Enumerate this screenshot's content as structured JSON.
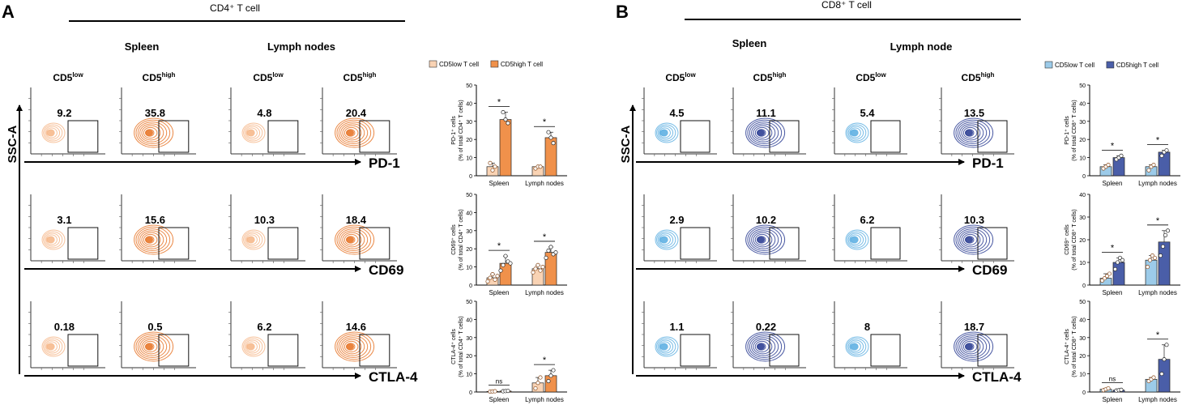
{
  "panels": [
    {
      "letter": "A",
      "title": "CD4⁺ T cell",
      "tissues": [
        "Spleen",
        "Lymph nodes"
      ],
      "subsets": [
        "CD5low",
        "CD5high",
        "CD5low",
        "CD5high"
      ],
      "y_axis_label": "SSC-A",
      "rows": [
        {
          "marker": "PD-1",
          "values": [
            "9.2",
            "35.8",
            "4.8",
            "20.4"
          ]
        },
        {
          "marker": "CD69",
          "values": [
            "3.1",
            "15.6",
            "10.3",
            "18.4"
          ]
        },
        {
          "marker": "CTLA-4",
          "values": [
            "0.18",
            "0.5",
            "6.2",
            "14.6"
          ]
        }
      ]
    },
    {
      "letter": "B",
      "title": "CD8⁺ T cell",
      "tissues": [
        "Spleen",
        "Lymph node"
      ],
      "subsets": [
        "CD5low",
        "CD5high",
        "CD5low",
        "CD5high"
      ],
      "y_axis_label": "SSC-A",
      "rows": [
        {
          "marker": "PD-1",
          "values": [
            "4.5",
            "11.1",
            "5.4",
            "13.5"
          ]
        },
        {
          "marker": "CD69",
          "values": [
            "2.9",
            "10.2",
            "6.2",
            "10.3"
          ]
        },
        {
          "marker": "CTLA-4",
          "values": [
            "1.1",
            "0.22",
            "8",
            "18.7"
          ]
        }
      ]
    }
  ],
  "colors": {
    "cd4_low": "#f9d3b4",
    "cd4_high": "#f0914b",
    "cd8_low": "#9ccbe9",
    "cd8_high": "#4a5ea8",
    "cd4_flow_low": "#f6b98c",
    "cd4_flow_high": "#e8772a",
    "cd8_flow_low": "#5fb0e2",
    "cd8_flow_high": "#2e3f94"
  },
  "chart_data": [
    {
      "type": "bar",
      "panel": "A",
      "legend": [
        "CD5low T cell",
        "CD5high T cell"
      ],
      "categories": [
        "Spleen",
        "Lymph nodes"
      ],
      "ylabel": "PD-1⁺ cells (% of total CD4⁺ T cells)",
      "ylim": [
        0,
        50
      ],
      "yticks": [
        0,
        10,
        20,
        30,
        40,
        50
      ],
      "series": [
        {
          "name": "CD5low T cell",
          "values": [
            5,
            5
          ],
          "points": [
            [
              7,
              3,
              5
            ],
            [
              4,
              5,
              5
            ]
          ]
        },
        {
          "name": "CD5high T cell",
          "values": [
            31,
            21
          ],
          "points": [
            [
              35,
              31,
              29
            ],
            [
              24,
              21,
              18
            ]
          ]
        }
      ],
      "significance": [
        "*",
        "*"
      ]
    },
    {
      "type": "bar",
      "panel": "A",
      "categories": [
        "Spleen",
        "Lymph nodes"
      ],
      "ylabel": "CD69⁺ cells (% of total CD4⁺ T cells)",
      "ylim": [
        0,
        50
      ],
      "yticks": [
        0,
        10,
        20,
        30,
        40,
        50
      ],
      "series": [
        {
          "name": "CD5low T cell",
          "values": [
            4,
            9
          ],
          "points": [
            [
              2,
              4,
              6,
              3,
              5
            ],
            [
              7,
              9,
              11,
              8,
              10
            ]
          ]
        },
        {
          "name": "CD5high T cell",
          "values": [
            12,
            18
          ],
          "points": [
            [
              8,
              11,
              16,
              13,
              12
            ],
            [
              15,
              19,
              21,
              17,
              18
            ]
          ]
        }
      ],
      "significance": [
        "*",
        "*"
      ]
    },
    {
      "type": "bar",
      "panel": "A",
      "categories": [
        "Spleen",
        "Lymph nodes"
      ],
      "ylabel": "CTLA-4⁺ cells (% of total CD4⁺ T cells)",
      "ylim": [
        0,
        50
      ],
      "yticks": [
        0,
        10,
        20,
        30,
        40,
        50
      ],
      "series": [
        {
          "name": "CD5low T cell",
          "values": [
            0.3,
            5
          ],
          "points": [
            [
              0.2,
              0.3,
              0.4
            ],
            [
              2,
              5,
              8
            ]
          ]
        },
        {
          "name": "CD5high T cell",
          "values": [
            0.5,
            9
          ],
          "points": [
            [
              0.4,
              0.5,
              0.6
            ],
            [
              6,
              9,
              12
            ]
          ]
        }
      ],
      "significance": [
        "ns",
        "*"
      ]
    },
    {
      "type": "bar",
      "panel": "B",
      "legend": [
        "CD5low T cell",
        "CD5high T cell"
      ],
      "categories": [
        "Spleen",
        "Lymph nodes"
      ],
      "ylabel": "PD-1⁺ cells (% of total CD8⁺ T cells)",
      "ylim": [
        0,
        50
      ],
      "yticks": [
        0,
        10,
        20,
        30,
        40,
        50
      ],
      "series": [
        {
          "name": "CD5low T cell",
          "values": [
            5,
            5
          ],
          "points": [
            [
              4,
              5,
              6
            ],
            [
              3,
              5,
              6
            ]
          ]
        },
        {
          "name": "CD5high T cell",
          "values": [
            10,
            13
          ],
          "points": [
            [
              9,
              10,
              11
            ],
            [
              11,
              13,
              14
            ]
          ]
        }
      ],
      "significance": [
        "*",
        "*"
      ]
    },
    {
      "type": "bar",
      "panel": "B",
      "categories": [
        "Spleen",
        "Lymph nodes"
      ],
      "ylabel": "CD69⁺ cells (% of total CD8⁺ T cells)",
      "ylim": [
        0,
        40
      ],
      "yticks": [
        0,
        10,
        20,
        30,
        40
      ],
      "series": [
        {
          "name": "CD5low T cell",
          "values": [
            3,
            11
          ],
          "points": [
            [
              2,
              3,
              4,
              5
            ],
            [
              8,
              11,
              13,
              12
            ]
          ]
        },
        {
          "name": "CD5high T cell",
          "values": [
            10,
            19
          ],
          "points": [
            [
              7,
              10,
              12,
              11
            ],
            [
              13,
              17,
              22,
              24
            ]
          ]
        }
      ],
      "significance": [
        "*",
        "*"
      ]
    },
    {
      "type": "bar",
      "panel": "B",
      "categories": [
        "Spleen",
        "Lymph nodes"
      ],
      "ylabel": "CTLA-4⁺ cells (% of total CD8⁺ T cells)",
      "ylim": [
        0,
        50
      ],
      "yticks": [
        0,
        10,
        20,
        30,
        40,
        50
      ],
      "series": [
        {
          "name": "CD5low T cell",
          "values": [
            1.5,
            7
          ],
          "points": [
            [
              1,
              1.5,
              2
            ],
            [
              6,
              7,
              8
            ]
          ]
        },
        {
          "name": "CD5high T cell",
          "values": [
            1,
            18
          ],
          "points": [
            [
              0.8,
              1,
              1.2
            ],
            [
              10,
              18,
              26
            ]
          ]
        }
      ],
      "significance": [
        "ns",
        "*"
      ]
    }
  ]
}
